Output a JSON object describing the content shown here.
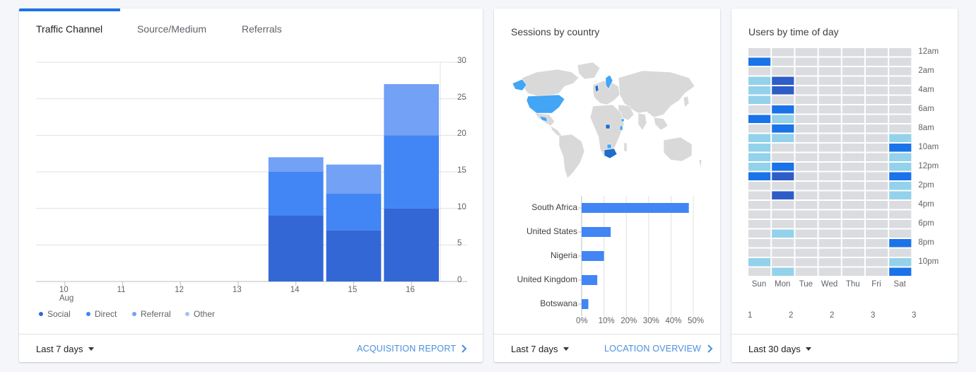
{
  "traffic": {
    "tabs": [
      "Traffic Channel",
      "Source/Medium",
      "Referrals"
    ],
    "range_label": "Last 7 days",
    "link_label": "ACQUISITION REPORT",
    "chart_data": {
      "type": "bar",
      "stacked": true,
      "categories": [
        "10\nAug",
        "11",
        "12",
        "13",
        "14",
        "15",
        "16"
      ],
      "series": [
        {
          "name": "Social",
          "values": [
            0,
            0,
            0,
            0,
            9,
            7,
            10
          ]
        },
        {
          "name": "Direct",
          "values": [
            0,
            0,
            0,
            0,
            6,
            5,
            10
          ]
        },
        {
          "name": "Referral",
          "values": [
            0,
            0,
            0,
            0,
            2,
            4,
            7
          ]
        },
        {
          "name": "Other",
          "values": [
            0,
            0,
            0,
            0,
            0,
            0,
            0
          ]
        }
      ],
      "y_ticks": [
        "30",
        "25",
        "20",
        "15",
        "10",
        "5",
        "0"
      ],
      "ylim": [
        0,
        30
      ],
      "y_axis": "right",
      "grid": true,
      "legend_position": "bottom-left",
      "colors": [
        "#3367d6",
        "#4285f4",
        "#72a1f5",
        "#a1c2fa"
      ]
    }
  },
  "country": {
    "title": "Sessions by country",
    "range_label": "Last 7 days",
    "link_label": "LOCATION OVERVIEW",
    "chart_data": {
      "type": "bar",
      "orientation": "horizontal",
      "categories": [
        "South Africa",
        "United States",
        "Nigeria",
        "United Kingdom",
        "Botswana"
      ],
      "values": [
        48,
        13,
        10,
        7,
        3
      ],
      "x_ticks": [
        "0%",
        "10%",
        "20%",
        "30%",
        "40%",
        "50%"
      ],
      "xlim": [
        0,
        50
      ],
      "color": "#4285f4"
    },
    "map": {
      "land_color": "#d9d9d9",
      "highlight_color": "#42a5f5",
      "strong_color": "#1e6ccb"
    }
  },
  "time_of_day": {
    "title": "Users by time of day",
    "range_label": "Last 30 days",
    "days": [
      "Sun",
      "Mon",
      "Tue",
      "Wed",
      "Thu",
      "Fri",
      "Sat"
    ],
    "hour_labels": [
      "12am",
      "2am",
      "4am",
      "6am",
      "8am",
      "10am",
      "12pm",
      "2pm",
      "4pm",
      "6pm",
      "8pm",
      "10pm"
    ],
    "legend_labels": [
      "1",
      "2",
      "2",
      "3",
      "3"
    ],
    "palette": [
      "#dadce0",
      "#93d2ea",
      "#3d9ae8",
      "#1a73e8",
      "#2f5dc8"
    ],
    "chart_data": {
      "type": "heatmap",
      "rows": "hour of day (0-23)",
      "columns": [
        "Sun",
        "Mon",
        "Tue",
        "Wed",
        "Thu",
        "Fri",
        "Sat"
      ],
      "values": [
        [
          0,
          0,
          0,
          0,
          0,
          0,
          0
        ],
        [
          3,
          0,
          0,
          0,
          0,
          0,
          0
        ],
        [
          0,
          0,
          0,
          0,
          0,
          0,
          0
        ],
        [
          1,
          4,
          0,
          0,
          0,
          0,
          0
        ],
        [
          1,
          4,
          0,
          0,
          0,
          0,
          0
        ],
        [
          1,
          0,
          0,
          0,
          0,
          0,
          0
        ],
        [
          0,
          3,
          0,
          0,
          0,
          0,
          0
        ],
        [
          3,
          1,
          0,
          0,
          0,
          0,
          0
        ],
        [
          0,
          3,
          0,
          0,
          0,
          0,
          0
        ],
        [
          1,
          1,
          0,
          0,
          0,
          0,
          1
        ],
        [
          1,
          0,
          0,
          0,
          0,
          0,
          3
        ],
        [
          1,
          0,
          0,
          0,
          0,
          0,
          1
        ],
        [
          1,
          3,
          0,
          0,
          0,
          0,
          1
        ],
        [
          3,
          4,
          0,
          0,
          0,
          0,
          3
        ],
        [
          0,
          0,
          0,
          0,
          0,
          0,
          1
        ],
        [
          0,
          4,
          0,
          0,
          0,
          0,
          1
        ],
        [
          0,
          0,
          0,
          0,
          0,
          0,
          0
        ],
        [
          0,
          0,
          0,
          0,
          0,
          0,
          0
        ],
        [
          0,
          0,
          0,
          0,
          0,
          0,
          0
        ],
        [
          0,
          1,
          0,
          0,
          0,
          0,
          0
        ],
        [
          0,
          0,
          0,
          0,
          0,
          0,
          3
        ],
        [
          0,
          0,
          0,
          0,
          0,
          0,
          0
        ],
        [
          1,
          0,
          0,
          0,
          0,
          0,
          1
        ],
        [
          0,
          1,
          0,
          0,
          0,
          0,
          3
        ]
      ]
    }
  }
}
